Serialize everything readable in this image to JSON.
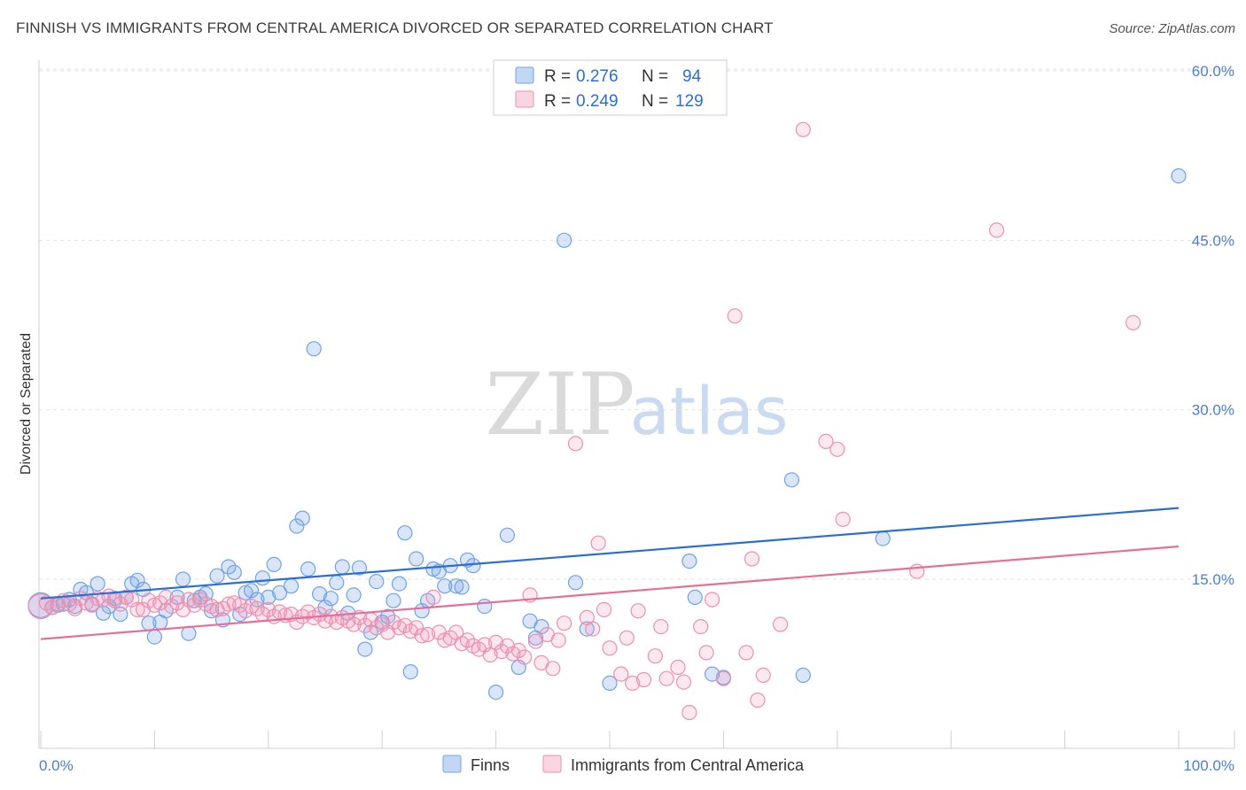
{
  "title": "FINNISH VS IMMIGRANTS FROM CENTRAL AMERICA DIVORCED OR SEPARATED CORRELATION CHART",
  "source": "Source: ZipAtlas.com",
  "watermark": {
    "zip": "ZIP",
    "atlas": "atlas"
  },
  "colors": {
    "blue": "#6fa3e6",
    "blue_fill": "rgba(122,167,230,0.28)",
    "blue_line": "#2a6fd0",
    "pink": "#ee8fb0",
    "pink_fill": "rgba(240,150,180,0.22)",
    "pink_line": "#e46f98",
    "tick": "#4a7fd4"
  },
  "legend": {
    "r_label": "R =",
    "n_label": "N =",
    "rows": [
      {
        "r": "0.276",
        "n": "94"
      },
      {
        "r": "0.249",
        "n": "129"
      }
    ]
  },
  "chart_data": {
    "type": "scatter",
    "title": "FINNISH VS IMMIGRANTS FROM CENTRAL AMERICA DIVORCED OR SEPARATED CORRELATION CHART",
    "xlabel": "",
    "ylabel": "Divorced or Separated",
    "xlim": [
      0,
      100
    ],
    "ylim": [
      0,
      62
    ],
    "x_tick_labels": [
      "0.0%",
      "100.0%"
    ],
    "y_ticks": [
      15,
      30,
      45,
      60
    ],
    "y_tick_labels": [
      "15.0%",
      "30.0%",
      "45.0%",
      "60.0%"
    ],
    "grid": true,
    "legend_position": "top-center",
    "series": [
      {
        "name": "Finns",
        "r": 0.276,
        "n": 94,
        "trend": [
          [
            0,
            13.3
          ],
          [
            100,
            21.3
          ]
        ],
        "points": [
          [
            0,
            12.7
          ],
          [
            1,
            12.5
          ],
          [
            1.5,
            12.7
          ],
          [
            2,
            12.8
          ],
          [
            2.5,
            13.2
          ],
          [
            3,
            12.6
          ],
          [
            3.5,
            14.1
          ],
          [
            4,
            13.8
          ],
          [
            4.5,
            12.8
          ],
          [
            5,
            14.6
          ],
          [
            5.5,
            12.0
          ],
          [
            6,
            12.6
          ],
          [
            6.5,
            13.3
          ],
          [
            7,
            11.9
          ],
          [
            7.5,
            13.4
          ],
          [
            8,
            14.6
          ],
          [
            8.5,
            14.9
          ],
          [
            9,
            14.1
          ],
          [
            9.5,
            11.1
          ],
          [
            10,
            9.9
          ],
          [
            10.5,
            11.2
          ],
          [
            11,
            12.2
          ],
          [
            12,
            13.4
          ],
          [
            12.5,
            15.0
          ],
          [
            13,
            10.2
          ],
          [
            13.5,
            13.1
          ],
          [
            14,
            13.4
          ],
          [
            14.5,
            13.7
          ],
          [
            15,
            12.2
          ],
          [
            15.5,
            15.3
          ],
          [
            16,
            11.4
          ],
          [
            16.5,
            16.1
          ],
          [
            17,
            15.6
          ],
          [
            17.5,
            11.9
          ],
          [
            18,
            13.8
          ],
          [
            18.5,
            14.0
          ],
          [
            19,
            13.2
          ],
          [
            19.5,
            15.1
          ],
          [
            20,
            13.4
          ],
          [
            20.5,
            16.3
          ],
          [
            21,
            13.8
          ],
          [
            22,
            14.4
          ],
          [
            22.5,
            19.7
          ],
          [
            23,
            20.4
          ],
          [
            23.5,
            15.9
          ],
          [
            24,
            35.4
          ],
          [
            24.5,
            13.7
          ],
          [
            25,
            12.5
          ],
          [
            25.5,
            13.3
          ],
          [
            26,
            14.7
          ],
          [
            26.5,
            16.1
          ],
          [
            27,
            12.0
          ],
          [
            27.5,
            13.6
          ],
          [
            28,
            16.0
          ],
          [
            28.5,
            8.8
          ],
          [
            29,
            10.3
          ],
          [
            29.5,
            14.8
          ],
          [
            30,
            11.2
          ],
          [
            30.5,
            11.7
          ],
          [
            31,
            13.1
          ],
          [
            31.5,
            14.6
          ],
          [
            32,
            19.1
          ],
          [
            32.5,
            6.8
          ],
          [
            33,
            16.8
          ],
          [
            33.5,
            12.2
          ],
          [
            34,
            13.1
          ],
          [
            34.5,
            15.9
          ],
          [
            35,
            15.7
          ],
          [
            35.5,
            14.4
          ],
          [
            36,
            16.2
          ],
          [
            36.5,
            14.4
          ],
          [
            37,
            14.3
          ],
          [
            37.5,
            16.7
          ],
          [
            38,
            16.2
          ],
          [
            39,
            12.6
          ],
          [
            40,
            5.0
          ],
          [
            41,
            18.9
          ],
          [
            42,
            7.2
          ],
          [
            43,
            11.3
          ],
          [
            43.5,
            9.8
          ],
          [
            44,
            10.8
          ],
          [
            46,
            45.0
          ],
          [
            47,
            14.7
          ],
          [
            48,
            10.6
          ],
          [
            50,
            5.8
          ],
          [
            57,
            16.6
          ],
          [
            57.5,
            13.4
          ],
          [
            59,
            6.6
          ],
          [
            60,
            6.3
          ],
          [
            66,
            23.8
          ],
          [
            67,
            6.5
          ],
          [
            74,
            18.6
          ],
          [
            100,
            50.7
          ]
        ]
      },
      {
        "name": "Immigrants from Central America",
        "r": 0.249,
        "n": 129,
        "trend": [
          [
            0,
            9.7
          ],
          [
            100,
            17.9
          ]
        ],
        "points": [
          [
            0,
            12.6
          ],
          [
            0.5,
            12.9
          ],
          [
            1,
            12.5
          ],
          [
            1.5,
            12.8
          ],
          [
            2,
            13.1
          ],
          [
            2.5,
            12.8
          ],
          [
            3,
            12.4
          ],
          [
            3.5,
            13.3
          ],
          [
            4,
            12.9
          ],
          [
            4.5,
            12.7
          ],
          [
            5,
            13.3
          ],
          [
            5.5,
            13.2
          ],
          [
            6,
            13.5
          ],
          [
            6.5,
            13.1
          ],
          [
            7,
            12.8
          ],
          [
            7.5,
            13.4
          ],
          [
            8,
            13.2
          ],
          [
            8.5,
            12.3
          ],
          [
            9,
            12.3
          ],
          [
            9.5,
            13.1
          ],
          [
            10,
            12.7
          ],
          [
            10.5,
            12.9
          ],
          [
            11,
            13.4
          ],
          [
            11.5,
            12.6
          ],
          [
            12,
            12.9
          ],
          [
            12.5,
            12.3
          ],
          [
            13,
            13.2
          ],
          [
            13.5,
            12.7
          ],
          [
            14,
            13.2
          ],
          [
            14.5,
            12.8
          ],
          [
            15,
            12.6
          ],
          [
            15.5,
            12.3
          ],
          [
            16,
            12.4
          ],
          [
            16.5,
            12.8
          ],
          [
            17,
            12.9
          ],
          [
            17.5,
            12.7
          ],
          [
            18,
            12.2
          ],
          [
            18.5,
            12.6
          ],
          [
            19,
            12.4
          ],
          [
            19.5,
            11.9
          ],
          [
            20,
            12.3
          ],
          [
            20.5,
            11.7
          ],
          [
            21,
            12.1
          ],
          [
            21.5,
            11.8
          ],
          [
            22,
            11.9
          ],
          [
            22.5,
            11.2
          ],
          [
            23,
            11.7
          ],
          [
            23.5,
            12.1
          ],
          [
            24,
            11.6
          ],
          [
            24.5,
            11.9
          ],
          [
            25,
            11.3
          ],
          [
            25.5,
            11.7
          ],
          [
            26,
            11.2
          ],
          [
            26.5,
            11.6
          ],
          [
            27,
            11.3
          ],
          [
            27.5,
            11.0
          ],
          [
            28,
            11.6
          ],
          [
            28.5,
            10.9
          ],
          [
            29,
            11.4
          ],
          [
            29.5,
            10.7
          ],
          [
            30,
            11.0
          ],
          [
            30.5,
            10.3
          ],
          [
            31,
            11.2
          ],
          [
            31.5,
            10.7
          ],
          [
            32,
            10.9
          ],
          [
            32.5,
            10.4
          ],
          [
            33,
            10.7
          ],
          [
            33.5,
            10.0
          ],
          [
            34,
            10.1
          ],
          [
            34.5,
            13.4
          ],
          [
            35,
            10.3
          ],
          [
            35.5,
            9.6
          ],
          [
            36,
            9.8
          ],
          [
            36.5,
            10.3
          ],
          [
            37,
            9.3
          ],
          [
            37.5,
            9.6
          ],
          [
            38,
            9.1
          ],
          [
            38.5,
            8.8
          ],
          [
            39,
            9.2
          ],
          [
            39.5,
            8.3
          ],
          [
            40,
            9.4
          ],
          [
            40.5,
            8.6
          ],
          [
            41,
            9.1
          ],
          [
            41.5,
            8.4
          ],
          [
            42,
            8.7
          ],
          [
            42.5,
            8.1
          ],
          [
            43,
            13.6
          ],
          [
            43.5,
            9.5
          ],
          [
            44,
            7.6
          ],
          [
            44.5,
            10.1
          ],
          [
            45,
            7.1
          ],
          [
            45.5,
            9.6
          ],
          [
            46,
            11.1
          ],
          [
            47,
            27.0
          ],
          [
            48,
            11.6
          ],
          [
            48.5,
            10.6
          ],
          [
            49,
            18.2
          ],
          [
            49.5,
            12.3
          ],
          [
            50,
            8.9
          ],
          [
            51,
            6.6
          ],
          [
            51.5,
            9.8
          ],
          [
            52,
            5.8
          ],
          [
            52.5,
            12.2
          ],
          [
            53,
            6.1
          ],
          [
            54,
            8.2
          ],
          [
            54.5,
            10.8
          ],
          [
            55,
            6.2
          ],
          [
            56,
            7.2
          ],
          [
            56.5,
            5.9
          ],
          [
            57,
            3.2
          ],
          [
            58,
            10.8
          ],
          [
            58.5,
            8.5
          ],
          [
            59,
            13.2
          ],
          [
            60,
            6.2
          ],
          [
            61,
            38.3
          ],
          [
            62,
            8.5
          ],
          [
            62.5,
            16.8
          ],
          [
            63,
            4.3
          ],
          [
            63.5,
            6.5
          ],
          [
            65,
            11.0
          ],
          [
            67,
            54.8
          ],
          [
            69,
            27.2
          ],
          [
            70,
            26.5
          ],
          [
            70.5,
            20.3
          ],
          [
            77,
            15.7
          ],
          [
            84,
            45.9
          ],
          [
            96,
            37.7
          ]
        ]
      }
    ]
  }
}
